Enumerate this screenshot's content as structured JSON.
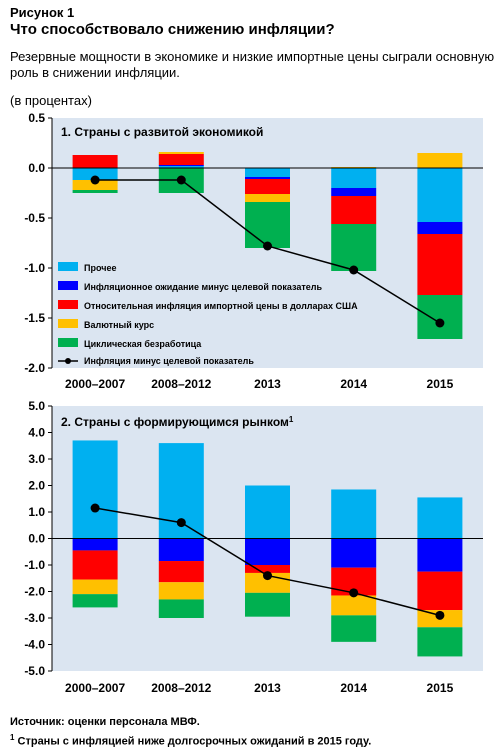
{
  "figure": {
    "label": "Рисунок 1",
    "title": "Что способствовало снижению инфляции?",
    "subtitle": "Резервные мощности в экономике и низкие импортные цены сыграли основную роль в снижении инфляции.",
    "unit": "(в процентах)"
  },
  "footer": {
    "source": "Источник: оценки персонала МВФ.",
    "note_mark": "1",
    "note": "Страны с инфляцией ниже долгосрочных ожиданий в 2015 году."
  },
  "colors": {
    "other": "#00b0f0",
    "expectations": "#0000ff",
    "import_prices": "#ff0000",
    "exchange_rate": "#ffc000",
    "unemployment": "#00b050",
    "line": "#000000",
    "panel_bg": "#dbe5f1"
  },
  "chart_data": [
    {
      "type": "bar",
      "stacked": true,
      "title": "1. Страны с развитой экономикой",
      "categories": [
        "2000–2007",
        "2008–2012",
        "2013",
        "2014",
        "2015"
      ],
      "ylim": [
        -2.0,
        0.5
      ],
      "yticks": [
        0.5,
        0.0,
        -0.5,
        -1.0,
        -1.5,
        -2.0
      ],
      "ytick_labels": [
        "0.5",
        "0.0",
        "-0.5",
        "-1.0",
        "-1.5",
        "-2.0"
      ],
      "grid": false,
      "legend_position": "lower-left",
      "series": [
        {
          "name": "Прочее",
          "key": "other",
          "values": [
            -0.12,
            0.02,
            -0.09,
            -0.2,
            -0.54
          ]
        },
        {
          "name": "Инфляционное ожидание минус целевой показатель",
          "key": "expectations",
          "values": [
            0.0,
            0.01,
            -0.02,
            -0.08,
            -0.12
          ]
        },
        {
          "name": "Относительная инфляция импортной цены в долларах США",
          "key": "import_prices",
          "values": [
            0.13,
            0.11,
            -0.15,
            -0.28,
            -0.61
          ]
        },
        {
          "name": "Валютный курс",
          "key": "exchange_rate",
          "values": [
            -0.1,
            0.02,
            -0.08,
            0.01,
            0.15
          ]
        },
        {
          "name": "Циклическая безработица",
          "key": "unemployment",
          "values": [
            -0.03,
            -0.25,
            -0.46,
            -0.47,
            -0.44
          ]
        }
      ],
      "line": {
        "name": "Инфляция минус целевой показатель",
        "values": [
          -0.12,
          -0.12,
          -0.78,
          -1.02,
          -1.55
        ]
      }
    },
    {
      "type": "bar",
      "stacked": true,
      "title": "2. Страны с формирующимся рынком",
      "title_sup": "1",
      "categories": [
        "2000–2007",
        "2008–2012",
        "2013",
        "2014",
        "2015"
      ],
      "ylim": [
        -5.0,
        5.0
      ],
      "yticks": [
        5.0,
        4.0,
        3.0,
        2.0,
        1.0,
        0.0,
        -1.0,
        -2.0,
        -3.0,
        -4.0,
        -5.0
      ],
      "ytick_labels": [
        "5.0",
        "4.0",
        "3.0",
        "2.0",
        "1.0",
        "0.0",
        "-1.0",
        "-2.0",
        "-3.0",
        "-4.0",
        "-5.0"
      ],
      "grid": false,
      "series": [
        {
          "name": "Прочее",
          "key": "other",
          "values": [
            3.7,
            3.6,
            2.0,
            1.85,
            1.55
          ]
        },
        {
          "name": "Инфляционное ожидание минус целевой показатель",
          "key": "expectations",
          "values": [
            -0.45,
            -0.85,
            -1.0,
            -1.1,
            -1.25
          ]
        },
        {
          "name": "Относительная инфляция импортной цены в долларах США",
          "key": "import_prices",
          "values": [
            -1.1,
            -0.8,
            -0.3,
            -1.05,
            -1.45
          ]
        },
        {
          "name": "Валютный курс",
          "key": "exchange_rate",
          "values": [
            -0.55,
            -0.65,
            -0.75,
            -0.75,
            -0.65
          ]
        },
        {
          "name": "Циклическая безработица",
          "key": "unemployment",
          "values": [
            -0.5,
            -0.7,
            -0.9,
            -1.0,
            -1.1
          ]
        }
      ],
      "line": {
        "name": "Инфляция минус целевой показатель",
        "values": [
          1.15,
          0.6,
          -1.4,
          -2.05,
          -2.9
        ]
      }
    }
  ]
}
